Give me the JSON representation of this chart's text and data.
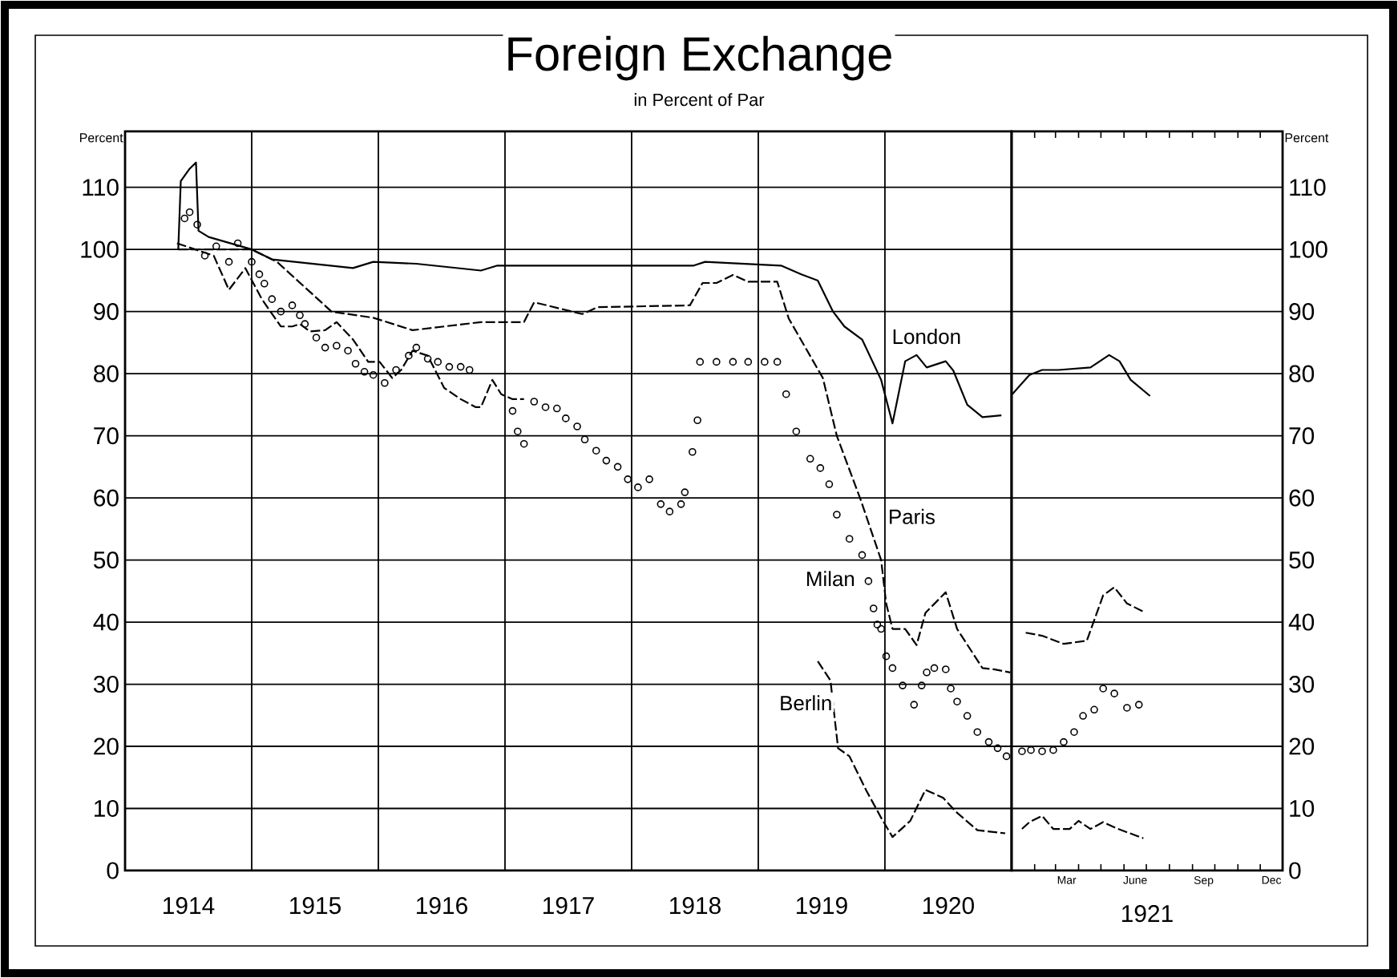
{
  "chart_data": [
    {
      "type": "line",
      "title": "Foreign Exchange",
      "subtitle": "in Percent of Par",
      "ylabel": "Percent",
      "xlim": [
        1914,
        1921
      ],
      "xticks": [
        {
          "value": 1914.5,
          "label": "1914"
        },
        {
          "value": 1915,
          "label": null
        },
        {
          "value": 1915.5,
          "label": "1915"
        },
        {
          "value": 1916,
          "label": null
        },
        {
          "value": 1916.5,
          "label": "1916"
        },
        {
          "value": 1917,
          "label": null
        },
        {
          "value": 1917.5,
          "label": "1917"
        },
        {
          "value": 1918,
          "label": null
        },
        {
          "value": 1918.5,
          "label": "1918"
        },
        {
          "value": 1919,
          "label": null
        },
        {
          "value": 1919.5,
          "label": "1919"
        },
        {
          "value": 1920,
          "label": null
        },
        {
          "value": 1920.5,
          "label": "1920"
        }
      ],
      "ylim": [
        0,
        119
      ],
      "yticks": [
        0,
        10,
        20,
        30,
        40,
        50,
        60,
        70,
        80,
        90,
        100,
        110
      ],
      "grid": true,
      "series": [
        {
          "name": "London",
          "color": "#000000",
          "line_style": "solid",
          "x": [
            1914.42,
            1914.44,
            1914.51,
            1914.56,
            1914.58,
            1914.66,
            1915.0,
            1915.16,
            1915.8,
            1915.96,
            1916.3,
            1916.81,
            1916.94,
            1917.7,
            1918.49,
            1918.58,
            1919.18,
            1919.34,
            1919.47,
            1919.59,
            1919.68,
            1919.82,
            1919.97,
            1920.06,
            1920.16,
            1920.25,
            1920.33,
            1920.48,
            1920.54,
            1920.65,
            1920.77,
            1920.92
          ],
          "values": [
            100,
            111,
            113,
            114,
            103,
            102,
            100,
            98.4,
            97,
            98,
            97.7,
            96.6,
            97.4,
            97.4,
            97.4,
            98,
            97.4,
            96,
            95,
            90,
            87.6,
            85.5,
            79,
            72,
            82,
            83,
            81,
            82,
            80.5,
            75,
            73,
            73.3
          ]
        },
        {
          "name": "Paris",
          "color": "#000000",
          "line_style": "dashed",
          "x": [
            1914.42,
            1915.0,
            1915.2,
            1915.63,
            1915.96,
            1916.27,
            1916.81,
            1917.15,
            1917.23,
            1917.61,
            1917.73,
            1918.46,
            1918.56,
            1918.67,
            1918.8,
            1918.92,
            1919.15,
            1919.24,
            1919.51,
            1919.62,
            1919.81,
            1919.97,
            1920.01,
            1920.06,
            1920.16,
            1920.25,
            1920.32,
            1920.48,
            1920.57,
            1920.77,
            1920.86,
            1920.99
          ],
          "values": [
            100,
            100,
            98,
            90,
            89,
            87,
            88.3,
            88.3,
            91.5,
            89.6,
            90.7,
            91,
            94.6,
            94.6,
            95.9,
            94.8,
            94.8,
            88.9,
            79.3,
            70,
            59.6,
            50,
            43,
            38.9,
            38.9,
            36.3,
            41.5,
            44.8,
            38.9,
            32.6,
            32.4,
            31.9
          ]
        },
        {
          "name": "Milan",
          "color": "#000000",
          "type": "scatter",
          "marker": "circle",
          "x": [
            1914.47,
            1914.51,
            1914.57,
            1914.63,
            1914.72,
            1914.82,
            1914.89,
            1915.0,
            1915.06,
            1915.1,
            1915.16,
            1915.23,
            1915.32,
            1915.38,
            1915.42,
            1915.51,
            1915.58,
            1915.67,
            1915.76,
            1915.82,
            1915.89,
            1915.96,
            1916.05,
            1916.14,
            1916.24,
            1916.3,
            1916.39,
            1916.47,
            1916.56,
            1916.65,
            1916.72,
            1917.06,
            1917.1,
            1917.15,
            1917.23,
            1917.32,
            1917.41,
            1917.48,
            1917.57,
            1917.63,
            1917.72,
            1917.8,
            1917.89,
            1917.97,
            1918.05,
            1918.14,
            1918.23,
            1918.3,
            1918.39,
            1918.42,
            1918.48,
            1918.52,
            1918.54,
            1918.67,
            1918.8,
            1918.92,
            1919.05,
            1919.15,
            1919.22,
            1919.3,
            1919.41,
            1919.49,
            1919.56,
            1919.62,
            1919.72,
            1919.82,
            1919.87,
            1919.91,
            1919.94,
            1919.97,
            1920.01,
            1920.06,
            1920.14,
            1920.23,
            1920.29,
            1920.33,
            1920.39,
            1920.48,
            1920.52,
            1920.57,
            1920.65,
            1920.73,
            1920.82,
            1920.89,
            1920.96
          ],
          "values": [
            105,
            106,
            104,
            99,
            100.5,
            98,
            101,
            98,
            96,
            94.5,
            92,
            90,
            91,
            89.4,
            88,
            85.8,
            84.2,
            84.5,
            83.7,
            81.6,
            80.3,
            79.8,
            78.5,
            80.6,
            82.9,
            84.2,
            82.4,
            81.9,
            81.1,
            81.1,
            80.6,
            74,
            70.7,
            68.7,
            75.5,
            74.6,
            74.4,
            72.8,
            71.5,
            69.4,
            67.6,
            66,
            65,
            63,
            61.7,
            63,
            59,
            57.8,
            59,
            60.9,
            67.4,
            72.5,
            81.9,
            81.9,
            81.9,
            81.9,
            81.9,
            81.9,
            76.7,
            70.7,
            66.3,
            64.8,
            62.2,
            57.3,
            53.4,
            50.8,
            46.6,
            42.2,
            39.6,
            38.9,
            34.5,
            32.6,
            29.8,
            26.7,
            29.8,
            31.9,
            32.6,
            32.4,
            29.3,
            27.2,
            24.9,
            22.3,
            20.7,
            19.7,
            18.4
          ]
        },
        {
          "name": "Berlin",
          "color": "#000000",
          "line_style": "dashed",
          "x": [
            1914.41,
            1914.7,
            1914.82,
            1914.95,
            1915.08,
            1915.23,
            1915.32,
            1915.38,
            1915.46,
            1915.58,
            1915.67,
            1915.8,
            1915.92,
            1916.01,
            1916.11,
            1916.18,
            1916.27,
            1916.39,
            1916.52,
            1916.65,
            1916.77,
            1916.81,
            1916.9,
            1916.97,
            1917.06,
            1917.15,
            1918.3,
            1919.47,
            1919.57,
            1919.63,
            1919.72,
            1919.85,
            1919.97,
            1920.06,
            1920.2,
            1920.32,
            1920.46,
            1920.57,
            1920.73,
            1920.95
          ],
          "values": [
            101,
            99,
            93.5,
            97,
            92,
            87.6,
            87.6,
            88,
            86.8,
            87,
            88.3,
            85.5,
            81.9,
            81.9,
            79.3,
            80.6,
            83.7,
            82.9,
            77.7,
            75.9,
            74.6,
            74.6,
            79,
            76.7,
            75.9,
            75.9,
            null,
            33.7,
            30.6,
            19.7,
            18.4,
            13,
            8.5,
            5.4,
            8,
            13,
            11.7,
            9.3,
            6.5,
            6
          ]
        }
      ]
    },
    {
      "type": "line",
      "xlabel": "1921",
      "ylabel": "Percent",
      "xlim": [
        "1921-01-01",
        "1921-12-31"
      ],
      "xticks": [
        {
          "value": "1921-02-01",
          "label": null
        },
        {
          "value": "1921-03-01",
          "label": null
        },
        {
          "value": "1921-03-16",
          "label": "Mar"
        },
        {
          "value": "1921-04-01",
          "label": null
        },
        {
          "value": "1921-05-01",
          "label": null
        },
        {
          "value": "1921-06-01",
          "label": null
        },
        {
          "value": "1921-06-16",
          "label": "June"
        },
        {
          "value": "1921-07-01",
          "label": null
        },
        {
          "value": "1921-08-01",
          "label": null
        },
        {
          "value": "1921-09-01",
          "label": null
        },
        {
          "value": "1921-09-16",
          "label": "Sep"
        },
        {
          "value": "1921-10-01",
          "label": null
        },
        {
          "value": "1921-11-01",
          "label": null
        },
        {
          "value": "1921-12-01",
          "label": null
        },
        {
          "value": "1921-12-16",
          "label": "Dec"
        }
      ],
      "ylim": [
        0,
        119
      ],
      "yticks": [
        0,
        10,
        20,
        30,
        40,
        50,
        60,
        70,
        80,
        90,
        100,
        110
      ],
      "grid": "y",
      "series": [
        {
          "color": "#000000",
          "line_style": "solid",
          "x": [
            "1921-01-02",
            "1921-01-25",
            "1921-02-11",
            "1921-03-05",
            "1921-04-17",
            "1921-05-12",
            "1921-05-26",
            "1921-06-10",
            "1921-07-06"
          ],
          "values": [
            76.7,
            79.8,
            80.6,
            80.6,
            81,
            83,
            82,
            79,
            76.4
          ]
        },
        {
          "color": "#000000",
          "line_style": "dashed",
          "x": [
            "1921-01-20",
            "1921-02-11",
            "1921-03-12",
            "1921-04-12",
            "1921-05-04",
            "1921-05-19",
            "1921-06-05",
            "1921-06-27"
          ],
          "values": [
            38.3,
            37.8,
            36.5,
            37,
            44.3,
            45.6,
            43,
            41.7
          ]
        },
        {
          "color": "#000000",
          "type": "scatter",
          "marker": "circle",
          "x": [
            "1921-01-15",
            "1921-01-27",
            "1921-02-11",
            "1921-02-26",
            "1921-03-12",
            "1921-03-26",
            "1921-04-07",
            "1921-04-22",
            "1921-05-04",
            "1921-05-19",
            "1921-06-05",
            "1921-06-21"
          ],
          "values": [
            19.2,
            19.4,
            19.2,
            19.4,
            20.7,
            22.3,
            24.9,
            25.9,
            29.3,
            28.5,
            26.2,
            26.7
          ]
        },
        {
          "color": "#000000",
          "line_style": "dashed",
          "x": [
            "1921-01-15",
            "1921-01-25",
            "1921-02-11",
            "1921-02-26",
            "1921-03-20",
            "1921-04-01",
            "1921-04-17",
            "1921-05-04",
            "1921-05-24",
            "1921-06-27"
          ],
          "values": [
            6.7,
            7.8,
            8.8,
            6.7,
            6.7,
            8,
            6.7,
            7.8,
            6.7,
            5.2
          ]
        }
      ]
    }
  ]
}
